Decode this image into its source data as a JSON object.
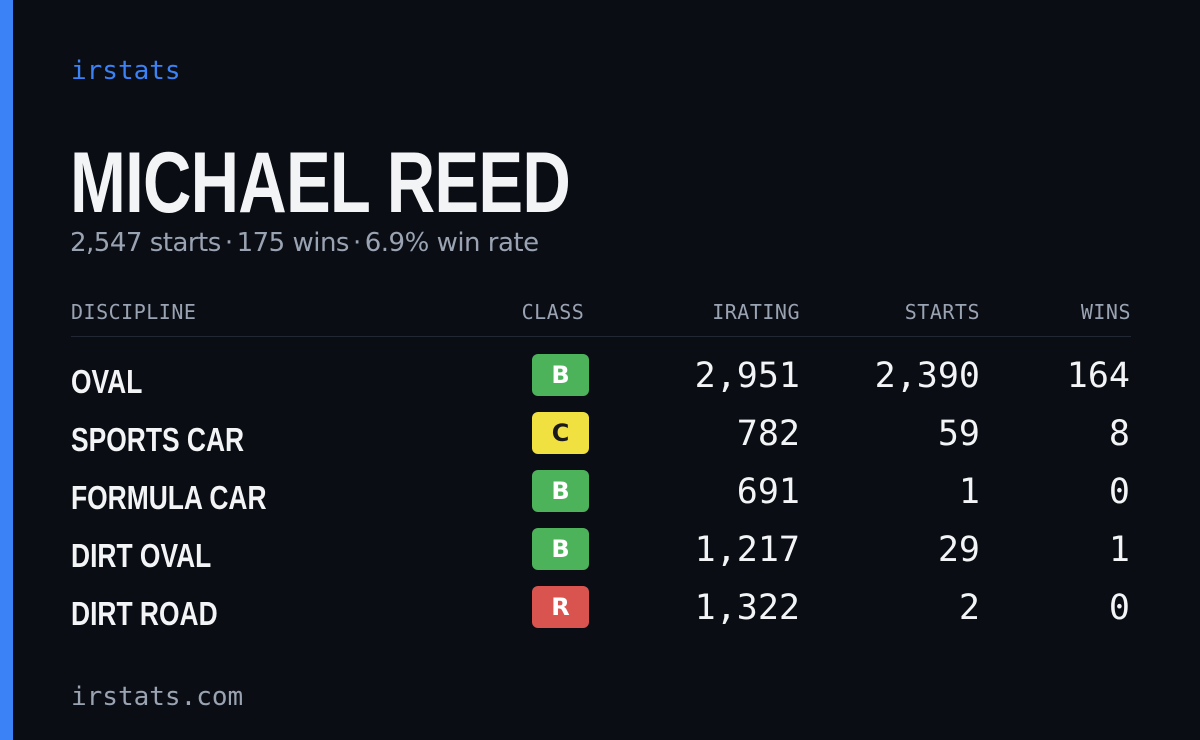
{
  "brand": "irstats",
  "driver": {
    "name": "MICHAEL REED",
    "summary": {
      "starts": "2,547 starts",
      "wins": "175 wins",
      "win_rate": "6.9% win rate",
      "separator": "·"
    }
  },
  "table": {
    "headers": {
      "discipline": "DISCIPLINE",
      "class": "CLASS",
      "irating": "IRATING",
      "starts": "STARTS",
      "wins": "WINS"
    },
    "rows": [
      {
        "discipline": "OVAL",
        "class": "B",
        "class_color": "#4cb35a",
        "irating": "2,951",
        "starts": "2,390",
        "wins": "164"
      },
      {
        "discipline": "SPORTS CAR",
        "class": "C",
        "class_color": "#f0e040",
        "irating": "782",
        "starts": "59",
        "wins": "8"
      },
      {
        "discipline": "FORMULA CAR",
        "class": "B",
        "class_color": "#4cb35a",
        "irating": "691",
        "starts": "1",
        "wins": "0"
      },
      {
        "discipline": "DIRT OVAL",
        "class": "B",
        "class_color": "#4cb35a",
        "irating": "1,217",
        "starts": "29",
        "wins": "1"
      },
      {
        "discipline": "DIRT ROAD",
        "class": "R",
        "class_color": "#d9534f",
        "irating": "1,322",
        "starts": "2",
        "wins": "0"
      }
    ]
  },
  "footer": "irstats.com",
  "colors": {
    "background": "#0a0d14",
    "accent": "#3b82f6",
    "text": "#f3f4f6",
    "muted": "#9aa3b2"
  }
}
